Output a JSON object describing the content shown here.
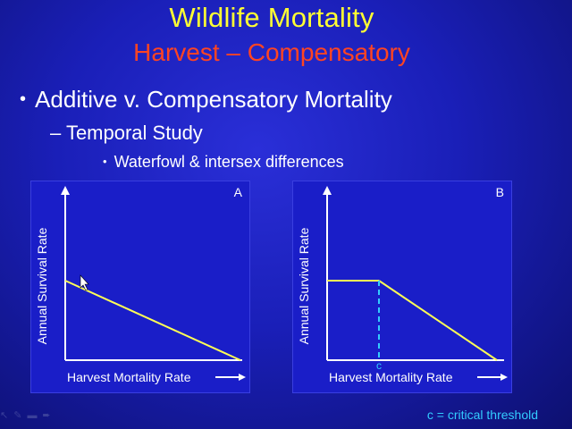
{
  "slide": {
    "title": "Wildlife Mortality",
    "subtitle": "Harvest – Compensatory",
    "bullets": {
      "level1": "Additive v. Compensatory Mortality",
      "level2": "– Temporal Study",
      "level3": "Waterfowl & intersex differences"
    },
    "footnote": "c = critical threshold"
  },
  "panels": [
    {
      "letter": "A",
      "ylabel": "Annual Survival Rate",
      "xlabel": "Harvest Mortality Rate"
    },
    {
      "letter": "B",
      "ylabel": "Annual Survival Rate",
      "xlabel": "Harvest Mortality Rate",
      "threshold_label": "c"
    }
  ],
  "colors": {
    "title": "#ffff33",
    "subtitle": "#ff4422",
    "line": "#ffff55",
    "threshold": "#33ccff",
    "footnote": "#33ccff"
  },
  "icons": [
    "arrow-pointer-icon",
    "pen-icon",
    "menu-icon",
    "next-arrow-icon"
  ]
}
